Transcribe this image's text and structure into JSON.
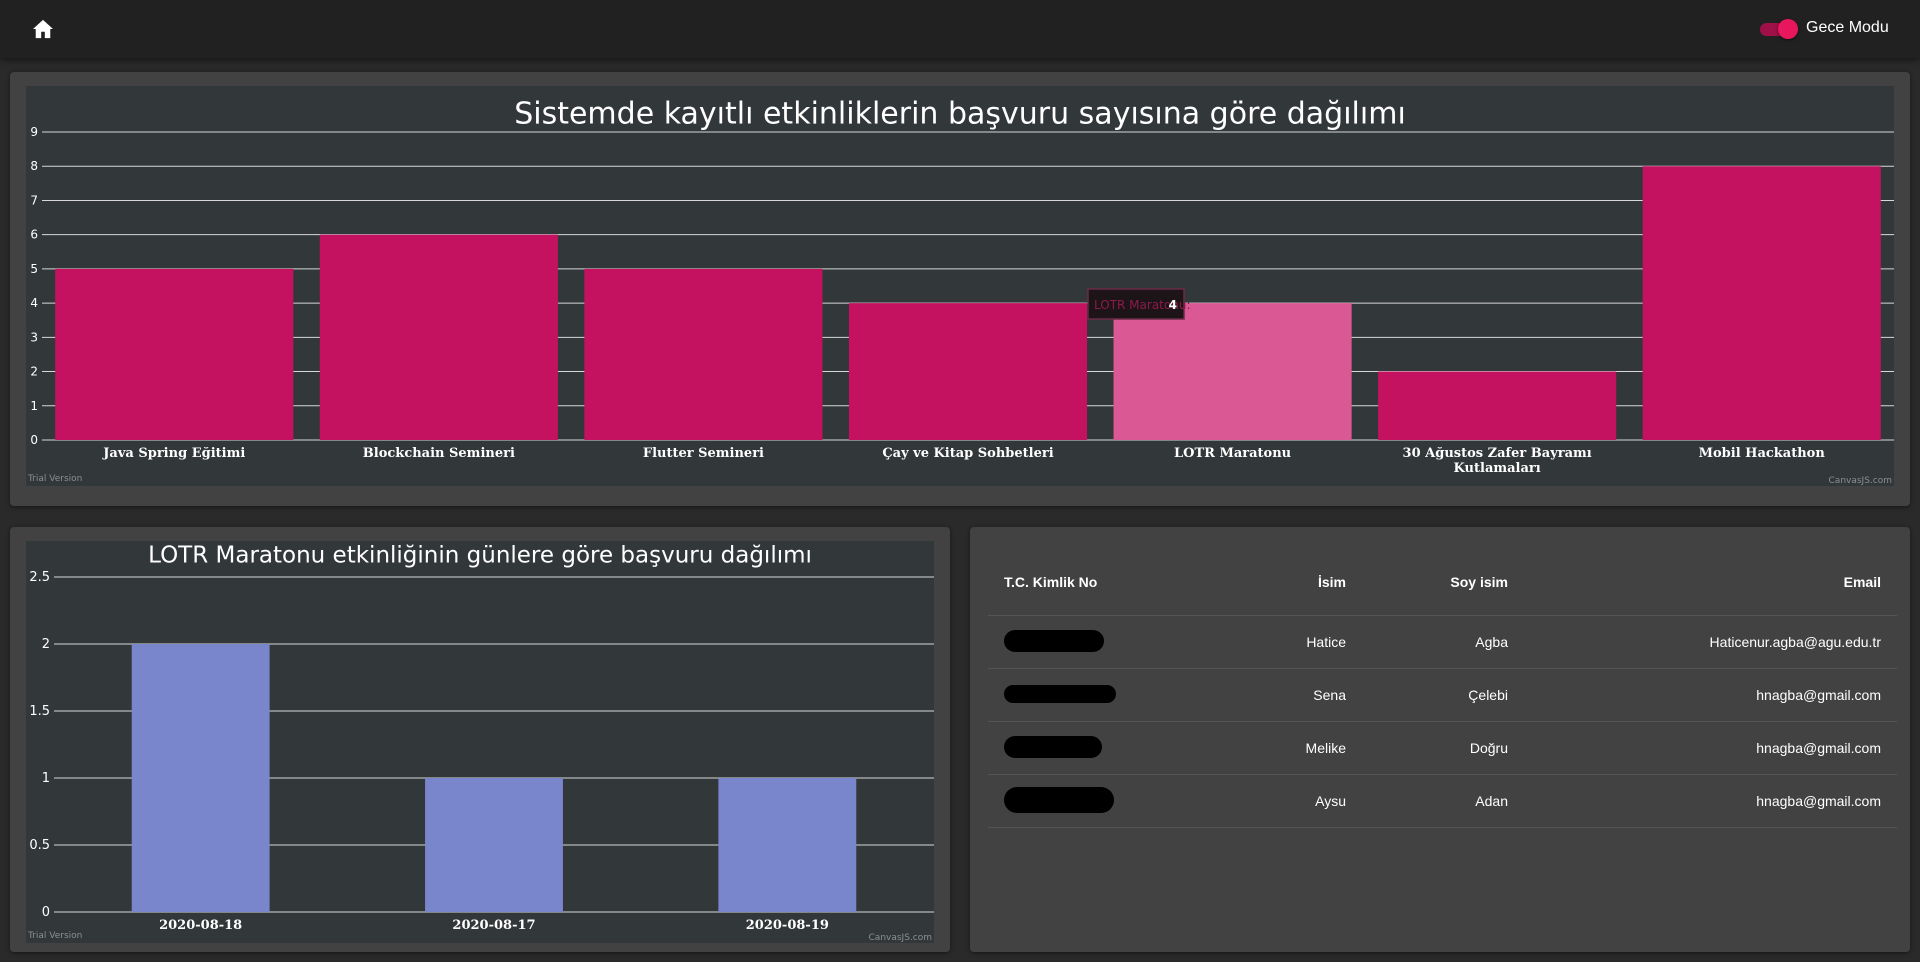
{
  "header": {
    "home_icon": "home-icon",
    "night_mode_label": "Gece Modu",
    "night_mode_on": true,
    "accent_color": "#e8175d"
  },
  "chart_data": [
    {
      "type": "bar",
      "title": "Sistemde kayıtlı etkinliklerin başvuru sayısına göre dağılımı",
      "categories": [
        "Java Spring Eğitimi",
        "Blockchain Semineri",
        "Flutter Semineri",
        "Çay ve Kitap Sohbetleri",
        "LOTR Maratonu",
        "30 Ağustos Zafer Bayramı Kutlamaları",
        "Mobil Hackathon"
      ],
      "values": [
        5,
        6,
        5,
        4,
        4,
        2,
        8
      ],
      "ylim": [
        0,
        9
      ],
      "yticks": [
        0,
        1,
        2,
        3,
        4,
        5,
        6,
        7,
        8,
        9
      ],
      "grid": true,
      "color": "#c41261",
      "highlight_color": "#da5893",
      "highlight_index": 4,
      "tooltip": {
        "label": "LOTR Maratonu:",
        "value": "4"
      },
      "watermark_left": "Trial Version",
      "watermark_right": "CanvasJS.com"
    },
    {
      "type": "bar",
      "title": "LOTR Maratonu etkinliğinin günlere göre başvuru dağılımı",
      "categories": [
        "2020-08-18",
        "2020-08-17",
        "2020-08-19"
      ],
      "values": [
        2,
        1,
        1
      ],
      "ylim": [
        0,
        2.5
      ],
      "yticks": [
        "0",
        "0.5",
        "1",
        "1.5",
        "2",
        "2.5"
      ],
      "grid": true,
      "color": "#7986cb",
      "watermark_left": "Trial Version",
      "watermark_right": "CanvasJS.com"
    }
  ],
  "table": {
    "headers": {
      "tc": "T.C. Kimlik No",
      "name": "İsim",
      "surname": "Soy isim",
      "email": "Email"
    },
    "rows": [
      {
        "name": "Hatice",
        "surname": "Agba",
        "email": "Haticenur.agba@agu.edu.tr"
      },
      {
        "name": "Sena",
        "surname": "Çelebi",
        "email": "hnagba@gmail.com"
      },
      {
        "name": "Melike",
        "surname": "Doğru",
        "email": "hnagba@gmail.com"
      },
      {
        "name": "Aysu",
        "surname": "Adan",
        "email": "hnagba@gmail.com"
      }
    ]
  }
}
